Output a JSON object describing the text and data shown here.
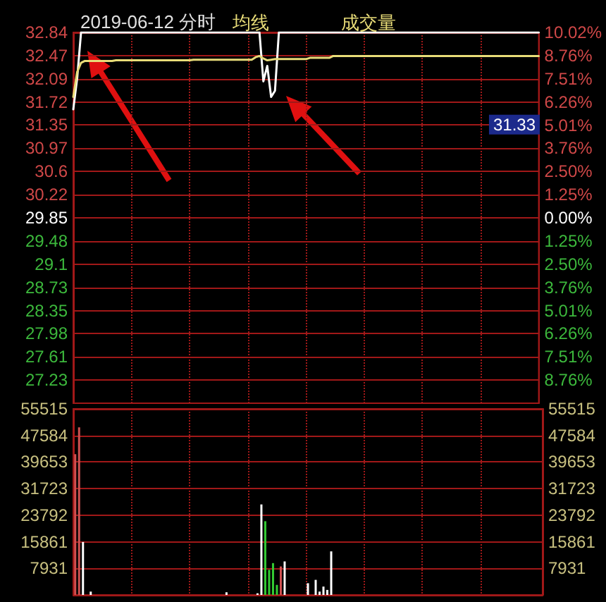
{
  "chart_data": [
    {
      "type": "line",
      "title": "2019-06-12 分时",
      "categories": [
        null,
        null,
        null,
        null,
        null,
        null,
        null,
        null,
        null,
        null,
        null,
        null,
        null,
        null,
        null,
        null,
        null,
        null,
        null,
        null,
        null,
        null,
        null,
        null,
        null,
        null,
        null,
        null,
        null,
        null,
        null,
        null,
        null,
        null,
        null,
        null,
        null,
        null,
        null,
        null,
        null,
        null,
        null,
        null,
        null,
        null,
        null,
        null,
        null,
        null,
        null,
        null,
        null,
        null,
        null,
        null,
        null,
        null,
        null,
        null,
        null,
        null,
        null,
        null,
        null,
        null,
        null,
        null,
        null,
        null,
        null,
        null,
        null,
        null,
        null,
        null,
        null,
        null,
        null,
        null,
        null,
        null,
        null,
        null,
        null,
        null,
        null,
        null,
        null,
        null,
        null,
        null,
        null,
        null,
        null,
        null,
        null,
        null,
        null,
        null,
        null,
        null,
        null,
        null,
        null,
        null,
        null,
        null,
        null,
        null,
        null,
        null,
        null,
        null,
        null,
        null,
        null,
        null,
        null,
        null,
        null
      ],
      "series": [
        {
          "color": "#ffffff",
          "values": [
            31.6,
            32.1,
            32.84,
            32.84,
            32.84,
            32.84,
            32.84,
            32.84,
            32.84,
            32.84,
            32.84,
            32.84,
            32.84,
            32.84,
            32.84,
            32.84,
            32.84,
            32.84,
            32.84,
            32.84,
            32.84,
            32.84,
            32.84,
            32.84,
            32.84,
            32.84,
            32.84,
            32.84,
            32.84,
            32.84,
            32.84,
            32.84,
            32.84,
            32.84,
            32.84,
            32.84,
            32.84,
            32.84,
            32.84,
            32.84,
            32.84,
            32.84,
            32.84,
            32.84,
            32.84,
            32.84,
            32.84,
            32.84,
            32.84,
            32.05,
            32.3,
            31.8,
            31.9,
            32.84,
            32.84,
            32.84,
            32.84,
            32.84,
            32.84,
            32.84,
            32.84,
            32.84,
            32.84,
            32.84,
            32.84,
            32.84,
            32.84,
            32.84,
            32.84,
            32.84,
            32.84,
            32.84,
            32.84,
            32.84,
            32.84,
            32.84,
            32.84,
            32.84,
            32.84,
            32.84,
            32.84,
            32.84,
            32.84,
            32.84,
            32.84,
            32.84,
            32.84,
            32.84,
            32.84,
            32.84,
            32.84,
            32.84,
            32.84,
            32.84,
            32.84,
            32.84,
            32.84,
            32.84,
            32.84,
            32.84,
            32.84,
            32.84,
            32.84,
            32.84,
            32.84,
            32.84,
            32.84,
            32.84,
            32.84,
            32.84,
            32.84,
            32.84,
            32.84,
            32.84,
            32.84,
            32.84,
            32.84,
            32.84,
            32.84,
            32.84,
            32.84
          ]
        },
        {
          "name": "均线",
          "color": "#e8dc78",
          "values": [
            31.8,
            32.2,
            32.35,
            32.38,
            32.38,
            32.38,
            32.38,
            32.38,
            32.38,
            32.38,
            32.38,
            32.39,
            32.39,
            32.39,
            32.39,
            32.39,
            32.39,
            32.39,
            32.39,
            32.39,
            32.39,
            32.39,
            32.39,
            32.39,
            32.39,
            32.39,
            32.39,
            32.39,
            32.39,
            32.39,
            32.39,
            32.4,
            32.4,
            32.4,
            32.4,
            32.4,
            32.4,
            32.4,
            32.4,
            32.4,
            32.4,
            32.4,
            32.4,
            32.4,
            32.4,
            32.4,
            32.4,
            32.44,
            32.46,
            32.42,
            32.39,
            32.4,
            32.41,
            32.41,
            32.41,
            32.41,
            32.41,
            32.41,
            32.41,
            32.41,
            32.41,
            32.43,
            32.43,
            32.43,
            32.43,
            32.43,
            32.43,
            32.46,
            32.46,
            32.46,
            32.46,
            32.46,
            32.46,
            32.46,
            32.46,
            32.46,
            32.46,
            32.46,
            32.46,
            32.46,
            32.46,
            32.46,
            32.46,
            32.46,
            32.46,
            32.46,
            32.46,
            32.46,
            32.46,
            32.46,
            32.46,
            32.46,
            32.46,
            32.46,
            32.46,
            32.46,
            32.46,
            32.46,
            32.46,
            32.46,
            32.46,
            32.46,
            32.46,
            32.46,
            32.46,
            32.46,
            32.46,
            32.46,
            32.46,
            32.46,
            32.46,
            32.46,
            32.46,
            32.46,
            32.46,
            32.46,
            32.46,
            32.46,
            32.46,
            32.46,
            32.46
          ]
        }
      ],
      "ylim": [
        26.86,
        32.84
      ],
      "yticks": [
        32.84,
        32.47,
        32.09,
        31.72,
        31.35,
        30.97,
        30.6,
        30.22,
        29.85,
        29.48,
        29.1,
        28.73,
        28.35,
        27.98,
        27.61,
        27.23
      ],
      "y2lim": [
        -10.02,
        10.02
      ],
      "y2ticks": [
        {
          "value": 10.02,
          "label": "10.02%"
        },
        {
          "value": 8.76,
          "label": "8.76%"
        },
        {
          "value": 7.51,
          "label": "7.51%"
        },
        {
          "value": 6.26,
          "label": "6.26%"
        },
        {
          "value": 5.01,
          "label": "5.01%"
        },
        {
          "value": 3.76,
          "label": "3.76%"
        },
        {
          "value": 2.5,
          "label": "2.50%"
        },
        {
          "value": 1.25,
          "label": "1.25%"
        },
        {
          "value": 0,
          "label": "0.00%"
        },
        {
          "value": -1.25,
          "label": "1.25%"
        },
        {
          "value": -2.5,
          "label": "2.50%"
        },
        {
          "value": -3.76,
          "label": "3.76%"
        },
        {
          "value": -5.01,
          "label": "5.01%"
        },
        {
          "value": -6.26,
          "label": "6.26%"
        },
        {
          "value": -7.51,
          "label": "7.51%"
        },
        {
          "value": -8.76,
          "label": "8.76%"
        }
      ],
      "annotations": [
        {
          "text": "31.33",
          "y": 31.33
        }
      ],
      "tick_labels": "y",
      "grid": true,
      "legend": "top"
    },
    {
      "type": "bar",
      "categories": [
        null,
        null,
        null,
        null,
        null,
        null,
        null,
        null,
        null,
        null,
        null,
        null,
        null,
        null,
        null,
        null,
        null,
        null,
        null,
        null,
        null,
        null,
        null,
        null,
        null,
        null,
        null,
        null,
        null,
        null,
        null,
        null,
        null,
        null,
        null,
        null,
        null,
        null,
        null,
        null,
        null,
        null,
        null,
        null,
        null,
        null,
        null,
        null,
        null,
        null,
        null,
        null,
        null,
        null,
        null,
        null,
        null,
        null,
        null,
        null,
        null,
        null,
        null,
        null,
        null,
        null,
        null,
        null,
        null,
        null,
        null,
        null,
        null,
        null,
        null,
        null,
        null,
        null,
        null,
        null,
        null,
        null,
        null,
        null,
        null,
        null,
        null,
        null,
        null,
        null,
        null,
        null,
        null,
        null,
        null,
        null,
        null,
        null,
        null,
        null,
        null,
        null,
        null,
        null,
        null,
        null,
        null,
        null,
        null,
        null,
        null,
        null,
        null,
        null,
        null,
        null,
        null,
        null,
        null,
        null,
        null
      ],
      "series": [
        {
          "name": "成交量",
          "color": "#e8dc78",
          "colors": [
            "#d05050",
            "#d05050",
            "#ffffff",
            "#ffffff",
            "#ffffff",
            "#ffffff",
            "#ffffff",
            "#ffffff",
            "#ffffff",
            "#ffffff",
            "#ffffff",
            "#ffffff",
            "#ffffff",
            "#ffffff",
            "#ffffff",
            "#ffffff",
            "#ffffff",
            "#ffffff",
            "#ffffff",
            "#ffffff",
            "#ffffff",
            "#ffffff",
            "#ffffff",
            "#ffffff",
            "#ffffff",
            "#ffffff",
            "#ffffff",
            "#ffffff",
            "#ffffff",
            "#ffffff",
            "#ffffff",
            "#ffffff",
            "#ffffff",
            "#ffffff",
            "#ffffff",
            "#ffffff",
            "#ffffff",
            "#ffffff",
            "#ffffff",
            "#ffffff",
            "#ffffff",
            "#ffffff",
            "#ffffff",
            "#ffffff",
            "#ffffff",
            "#ffffff",
            "#ffffff",
            "#ffffff",
            "#ffffff",
            "#33cc33",
            "#33cc33",
            "#33cc33",
            "#33cc33",
            "#d05050",
            "#ffffff",
            "#ffffff",
            "#ffffff",
            "#ffffff",
            "#ffffff",
            "#ffffff",
            "#ffffff",
            "#ffffff",
            "#ffffff",
            "#ffffff",
            "#ffffff",
            "#ffffff",
            "#ffffff",
            "#ffffff",
            "#ffffff",
            "#ffffff",
            "#ffffff",
            "#ffffff",
            "#ffffff",
            "#ffffff",
            "#ffffff",
            "#ffffff",
            "#ffffff",
            "#ffffff",
            "#ffffff",
            "#ffffff",
            "#ffffff",
            "#ffffff",
            "#ffffff",
            "#ffffff",
            "#ffffff",
            "#ffffff",
            "#ffffff",
            "#ffffff",
            "#ffffff",
            "#ffffff",
            "#ffffff",
            "#ffffff",
            "#ffffff",
            "#ffffff",
            "#ffffff",
            "#ffffff",
            "#ffffff",
            "#ffffff",
            "#ffffff",
            "#ffffff",
            "#ffffff",
            "#ffffff",
            "#ffffff",
            "#ffffff",
            "#ffffff",
            "#ffffff",
            "#ffffff",
            "#ffffff",
            "#ffffff",
            "#ffffff",
            "#ffffff",
            "#ffffff",
            "#ffffff",
            "#ffffff",
            "#ffffff",
            "#ffffff",
            "#ffffff",
            "#ffffff",
            "#ffffff",
            "#ffffff",
            "#ffffff"
          ],
          "values": [
            42000,
            50000,
            15800,
            0,
            1000,
            0,
            0,
            0,
            0,
            0,
            0,
            0,
            0,
            0,
            0,
            0,
            0,
            0,
            0,
            0,
            0,
            0,
            0,
            0,
            0,
            0,
            0,
            0,
            0,
            0,
            0,
            0,
            0,
            0,
            0,
            0,
            0,
            0,
            0,
            800,
            0,
            0,
            0,
            0,
            0,
            0,
            0,
            500,
            27000,
            22000,
            7500,
            9500,
            3000,
            8500,
            10000,
            0,
            0,
            0,
            0,
            0,
            3500,
            0,
            4500,
            1000,
            2500,
            1500,
            13000,
            0,
            0,
            0,
            0,
            0,
            0,
            0,
            0,
            0,
            0,
            0,
            0,
            0,
            0,
            0,
            0,
            0,
            0,
            0,
            0,
            0,
            0,
            0,
            0,
            0,
            0,
            0,
            0,
            0,
            0,
            0,
            0,
            0,
            0,
            0,
            0,
            0,
            0,
            0,
            0,
            0,
            0,
            0,
            0,
            0,
            0,
            0,
            0,
            0,
            0,
            0,
            0,
            0,
            0
          ]
        }
      ],
      "ylim": [
        0,
        55515
      ],
      "yticks": [
        7931,
        15861,
        23792,
        31723,
        39653,
        47584,
        55515
      ],
      "y2lim": [
        0,
        55515
      ],
      "y2ticks": [
        7931,
        15861,
        23792,
        31723,
        39653,
        47584,
        55515
      ],
      "tick_labels": "y",
      "grid": true,
      "legend": "top"
    }
  ]
}
